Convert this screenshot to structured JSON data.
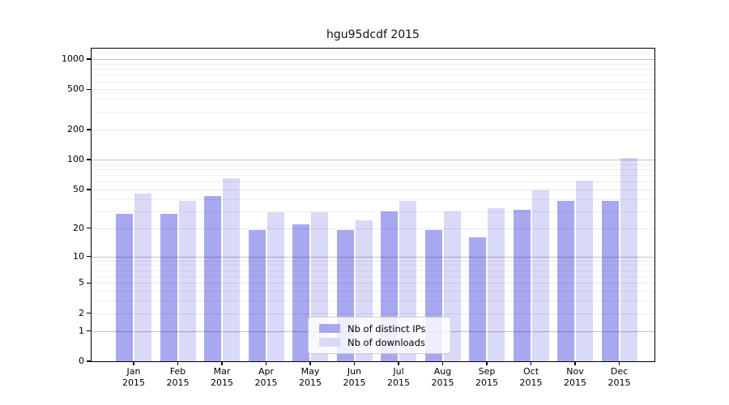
{
  "chart_data": {
    "type": "bar",
    "title": "hgu95dcdf 2015",
    "categories": [
      "Jan",
      "Feb",
      "Mar",
      "Apr",
      "May",
      "Jun",
      "Jul",
      "Aug",
      "Sep",
      "Oct",
      "Nov",
      "Dec"
    ],
    "category_year": "2015",
    "series": [
      {
        "name": "Nb of distinct IPs",
        "color": "#a8a8f0",
        "values": [
          28,
          28,
          43,
          19,
          22,
          19,
          30,
          19,
          16,
          31,
          38,
          38
        ]
      },
      {
        "name": "Nb of downloads",
        "color": "#d9d9f8",
        "values": [
          45,
          38,
          65,
          29,
          29,
          24,
          38,
          30,
          32,
          49,
          61,
          104
        ]
      }
    ],
    "yscale": "log1p",
    "y_ticks": [
      0,
      1,
      2,
      5,
      10,
      20,
      50,
      100,
      200,
      500,
      1000
    ],
    "ylim": [
      0,
      1276
    ],
    "grid": true,
    "legend_position": "lower-center"
  }
}
